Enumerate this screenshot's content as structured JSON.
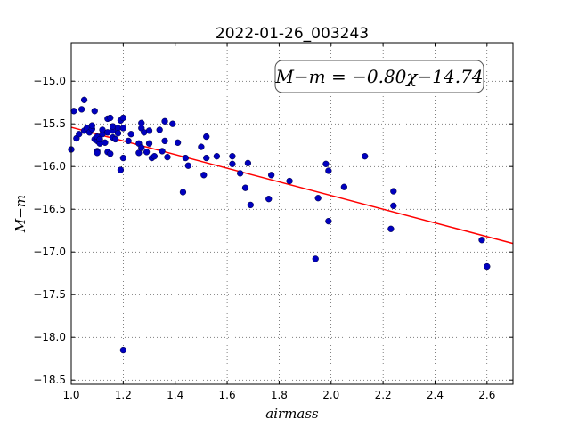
{
  "chart_data": {
    "type": "scatter",
    "title": "2022-01-26_003243",
    "xlabel": "airmass",
    "ylabel": "M−m",
    "xlim": [
      1.0,
      2.7
    ],
    "ylim": [
      -18.55,
      -14.55
    ],
    "xticks": [
      1.0,
      1.2,
      1.4,
      1.6,
      1.8,
      2.0,
      2.2,
      2.4,
      2.6
    ],
    "xtick_labels": [
      "1.0",
      "1.2",
      "1.4",
      "1.6",
      "1.8",
      "2.0",
      "2.2",
      "2.4",
      "2.6"
    ],
    "yticks": [
      -15.0,
      -15.5,
      -16.0,
      -16.5,
      -17.0,
      -17.5,
      -18.0,
      -18.5
    ],
    "ytick_labels": [
      "−15.0",
      "−15.5",
      "−16.0",
      "−16.5",
      "−17.0",
      "−17.5",
      "−18.0",
      "−18.5"
    ],
    "grid": true,
    "annotation": "M−m = −0.80χ−14.74",
    "fit": {
      "slope": -0.8,
      "intercept": -14.74,
      "color": "#ff0000"
    },
    "marker_color": "#0000bf",
    "points": [
      [
        1.0,
        -15.8
      ],
      [
        1.01,
        -15.35
      ],
      [
        1.02,
        -15.67
      ],
      [
        1.03,
        -15.62
      ],
      [
        1.04,
        -15.33
      ],
      [
        1.05,
        -15.58
      ],
      [
        1.05,
        -15.22
      ],
      [
        1.06,
        -15.55
      ],
      [
        1.07,
        -15.6
      ],
      [
        1.08,
        -15.56
      ],
      [
        1.08,
        -15.52
      ],
      [
        1.09,
        -15.35
      ],
      [
        1.09,
        -15.68
      ],
      [
        1.1,
        -15.7
      ],
      [
        1.1,
        -15.65
      ],
      [
        1.1,
        -15.82
      ],
      [
        1.1,
        -15.84
      ],
      [
        1.11,
        -15.73
      ],
      [
        1.11,
        -15.68
      ],
      [
        1.12,
        -15.62
      ],
      [
        1.12,
        -15.57
      ],
      [
        1.13,
        -15.72
      ],
      [
        1.14,
        -15.44
      ],
      [
        1.14,
        -15.6
      ],
      [
        1.14,
        -15.83
      ],
      [
        1.15,
        -15.43
      ],
      [
        1.15,
        -15.85
      ],
      [
        1.16,
        -15.58
      ],
      [
        1.16,
        -15.66
      ],
      [
        1.16,
        -15.53
      ],
      [
        1.17,
        -15.68
      ],
      [
        1.18,
        -15.55
      ],
      [
        1.18,
        -15.61
      ],
      [
        1.19,
        -15.46
      ],
      [
        1.19,
        -16.04
      ],
      [
        1.2,
        -15.43
      ],
      [
        1.2,
        -15.55
      ],
      [
        1.2,
        -15.9
      ],
      [
        1.2,
        -18.15
      ],
      [
        1.22,
        -15.7
      ],
      [
        1.23,
        -15.62
      ],
      [
        1.26,
        -15.73
      ],
      [
        1.26,
        -15.84
      ],
      [
        1.27,
        -15.78
      ],
      [
        1.27,
        -15.49
      ],
      [
        1.27,
        -15.55
      ],
      [
        1.28,
        -15.6
      ],
      [
        1.29,
        -15.83
      ],
      [
        1.3,
        -15.73
      ],
      [
        1.3,
        -15.58
      ],
      [
        1.31,
        -15.9
      ],
      [
        1.32,
        -15.88
      ],
      [
        1.34,
        -15.57
      ],
      [
        1.35,
        -15.82
      ],
      [
        1.36,
        -15.47
      ],
      [
        1.36,
        -15.7
      ],
      [
        1.37,
        -15.89
      ],
      [
        1.39,
        -15.5
      ],
      [
        1.41,
        -15.72
      ],
      [
        1.43,
        -16.3
      ],
      [
        1.44,
        -15.9
      ],
      [
        1.45,
        -15.99
      ],
      [
        1.5,
        -15.77
      ],
      [
        1.51,
        -16.1
      ],
      [
        1.52,
        -15.65
      ],
      [
        1.52,
        -15.9
      ],
      [
        1.56,
        -15.88
      ],
      [
        1.62,
        -15.88
      ],
      [
        1.62,
        -15.97
      ],
      [
        1.65,
        -16.08
      ],
      [
        1.67,
        -16.25
      ],
      [
        1.68,
        -15.96
      ],
      [
        1.69,
        -16.45
      ],
      [
        1.76,
        -16.38
      ],
      [
        1.77,
        -16.1
      ],
      [
        1.84,
        -16.17
      ],
      [
        1.94,
        -17.08
      ],
      [
        1.95,
        -16.37
      ],
      [
        1.98,
        -15.97
      ],
      [
        1.99,
        -16.05
      ],
      [
        1.99,
        -16.64
      ],
      [
        2.05,
        -16.24
      ],
      [
        2.13,
        -15.88
      ],
      [
        2.23,
        -16.73
      ],
      [
        2.24,
        -16.29
      ],
      [
        2.24,
        -16.46
      ],
      [
        2.58,
        -16.86
      ],
      [
        2.6,
        -17.17
      ]
    ]
  }
}
